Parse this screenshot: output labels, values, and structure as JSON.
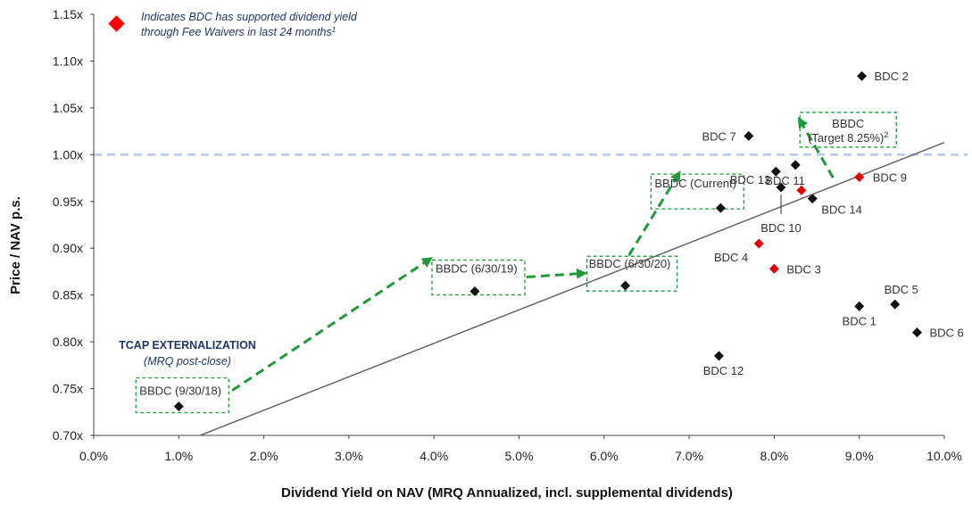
{
  "chart_data": {
    "type": "scatter",
    "xlabel": "Dividend Yield on NAV (MRQ Annualized, incl. supplemental dividends)",
    "ylabel": "Price / NAV p.s.",
    "xlim": [
      0.0,
      10.0
    ],
    "ylim": [
      0.7,
      1.15
    ],
    "x_ticks": [
      "0.0%",
      "1.0%",
      "2.0%",
      "3.0%",
      "4.0%",
      "5.0%",
      "6.0%",
      "7.0%",
      "8.0%",
      "9.0%",
      "10.0%"
    ],
    "y_ticks": [
      "0.70x",
      "0.75x",
      "0.80x",
      "0.85x",
      "0.90x",
      "0.95x",
      "1.00x",
      "1.05x",
      "1.10x",
      "1.15x"
    ],
    "reference_line": {
      "y": 1.0,
      "style": "dashed",
      "color": "#b4c7e7"
    },
    "trend_line": {
      "x": [
        1.25,
        10.0
      ],
      "y": [
        0.7,
        1.013
      ],
      "color": "#666666"
    },
    "legend": {
      "marker_color": "#ff0000",
      "line1": "Indicates BDC has supported dividend yield",
      "line2": "through Fee Waivers in last 24 months",
      "footnote": "1"
    },
    "annotation": {
      "title": "TCAP EXTERNALIZATION",
      "subtitle": "(MRQ post-close)"
    },
    "colors": {
      "peer": "#111111",
      "fee_waiver": "#e00000",
      "path": "#1f9a3a"
    },
    "points": [
      {
        "label": "BDC 2",
        "x": 9.03,
        "y": 1.084,
        "fee_waiver": false
      },
      {
        "label": "BDC 7",
        "x": 7.7,
        "y": 1.02,
        "fee_waiver": false
      },
      {
        "label": "BDC 13",
        "x": 8.02,
        "y": 0.982,
        "fee_waiver": false
      },
      {
        "label": "",
        "x": 8.25,
        "y": 0.989,
        "fee_waiver": false
      },
      {
        "label": "BDC 11",
        "x": 8.32,
        "y": 0.962,
        "fee_waiver": true
      },
      {
        "label": "BDC 9",
        "x": 9.0,
        "y": 0.976,
        "fee_waiver": true
      },
      {
        "label": "BDC 10",
        "x": 8.08,
        "y": 0.965,
        "fee_waiver": false
      },
      {
        "label": "BDC 14",
        "x": 8.45,
        "y": 0.953,
        "fee_waiver": false
      },
      {
        "label": "BDC 4",
        "x": 7.82,
        "y": 0.905,
        "fee_waiver": true
      },
      {
        "label": "BDC 3",
        "x": 8.0,
        "y": 0.878,
        "fee_waiver": true
      },
      {
        "label": "BDC 5",
        "x": 9.42,
        "y": 0.84,
        "fee_waiver": false
      },
      {
        "label": "BDC 1",
        "x": 9.0,
        "y": 0.838,
        "fee_waiver": false
      },
      {
        "label": "BDC 6",
        "x": 9.68,
        "y": 0.81,
        "fee_waiver": false
      },
      {
        "label": "BDC 12",
        "x": 7.35,
        "y": 0.785,
        "fee_waiver": false
      }
    ],
    "bbdc_path": [
      {
        "label": "BBDC (9/30/18)",
        "x": 1.0,
        "y": 0.731
      },
      {
        "label": "BBDC (6/30/19)",
        "x": 4.48,
        "y": 0.854
      },
      {
        "label": "BBDC (6/30/20)",
        "x": 6.25,
        "y": 0.86
      },
      {
        "label": "BBDC (Current)",
        "x": 7.37,
        "y": 0.943
      },
      {
        "label_line1": "BBDC",
        "label_line2": "(Target 8.25%)",
        "footnote": "2",
        "x": 8.25,
        "y": 1.008
      }
    ]
  }
}
